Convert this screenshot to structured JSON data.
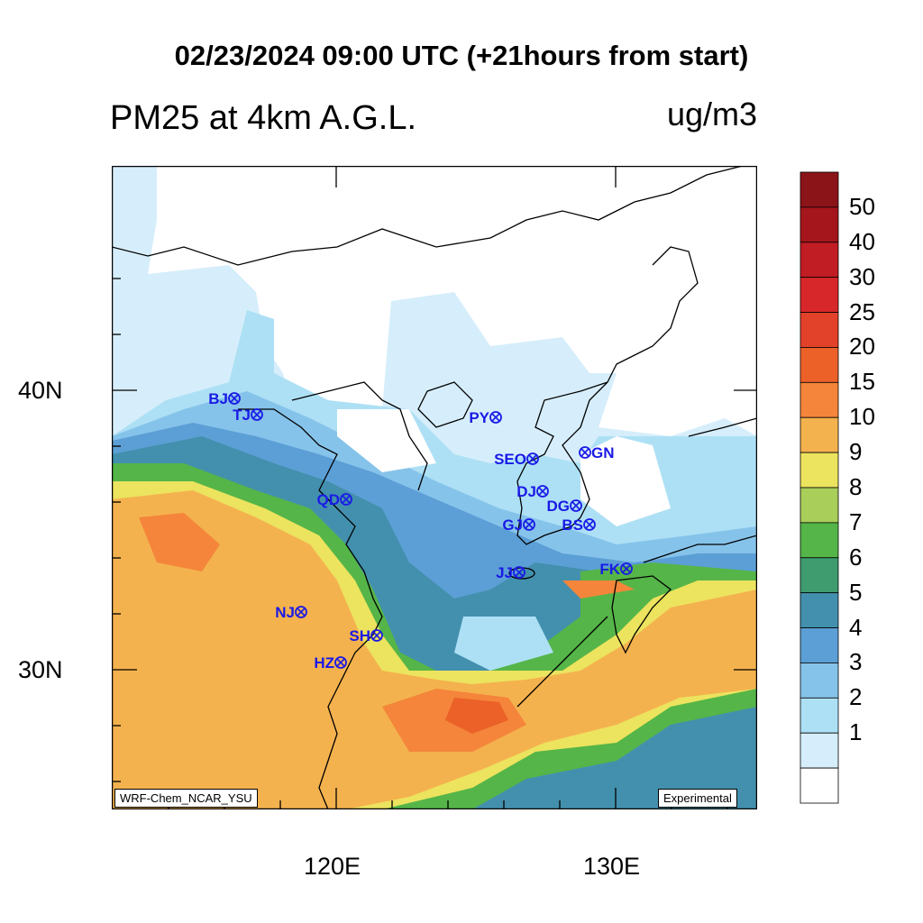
{
  "header": {
    "title": "02/23/2024 09:00 UTC (+21hours from start)",
    "subtitle": "PM25 at 4km A.G.L.",
    "units": "ug/m3"
  },
  "map": {
    "lon_range": [
      112,
      135
    ],
    "lat_range": [
      25,
      48
    ],
    "x_tick_labels": [
      "120E",
      "130E"
    ],
    "y_tick_labels": [
      "40N",
      "30N"
    ],
    "credit_left": "WRF-Chem_NCAR_YSU",
    "credit_right": "Experimental",
    "stations": [
      {
        "code": "BJ",
        "label_side": "left"
      },
      {
        "code": "TJ",
        "label_side": "left"
      },
      {
        "code": "PY",
        "label_side": "left"
      },
      {
        "code": "SEO",
        "label_side": "left"
      },
      {
        "code": "GN",
        "label_side": "right"
      },
      {
        "code": "QD",
        "label_side": "left"
      },
      {
        "code": "DJ",
        "label_side": "left"
      },
      {
        "code": "DG",
        "label_side": "left"
      },
      {
        "code": "GJ",
        "label_side": "left"
      },
      {
        "code": "BS",
        "label_side": "left"
      },
      {
        "code": "JJ",
        "label_side": "left"
      },
      {
        "code": "FK",
        "label_side": "left"
      },
      {
        "code": "NJ",
        "label_side": "left"
      },
      {
        "code": "SH",
        "label_side": "left"
      },
      {
        "code": "HZ",
        "label_side": "left"
      }
    ]
  },
  "colorbar": {
    "labels": [
      "50",
      "40",
      "30",
      "25",
      "20",
      "15",
      "10",
      "9",
      "8",
      "7",
      "6",
      "5",
      "4",
      "3",
      "2",
      "1"
    ],
    "colors": [
      "#8b1419",
      "#a4161c",
      "#c01d24",
      "#d7272a",
      "#e2412a",
      "#eb6128",
      "#f4853a",
      "#f4b24e",
      "#ece35e",
      "#a9cf5a",
      "#55b548",
      "#3e9c6f",
      "#4390ae",
      "#5c9fd6",
      "#86c3ea",
      "#ade0f5",
      "#d6eefb",
      "#ffffff"
    ]
  }
}
